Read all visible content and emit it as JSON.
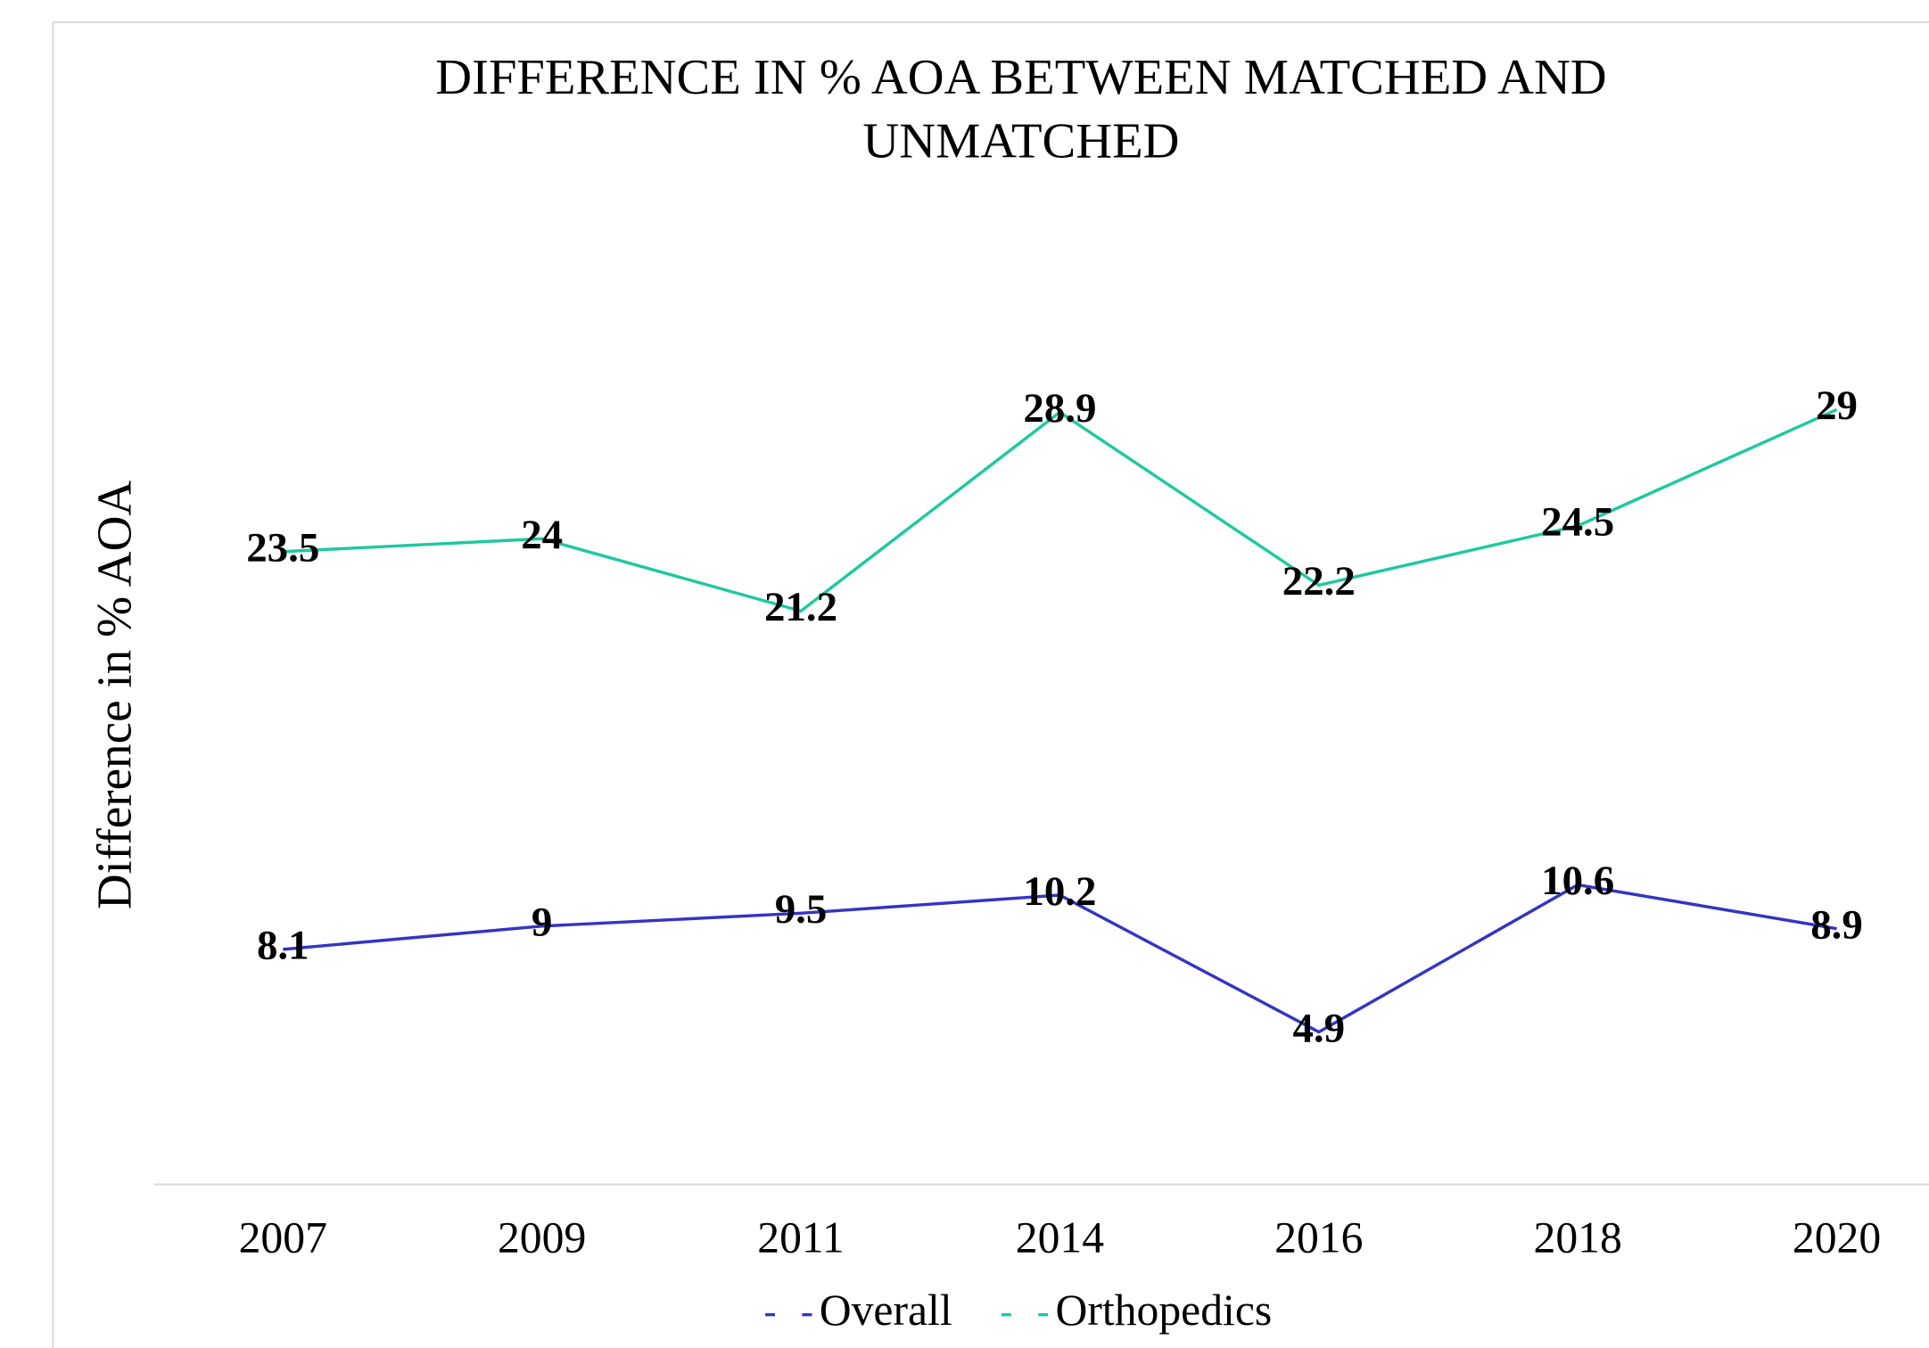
{
  "chart_data": {
    "type": "line",
    "title": "DIFFERENCE IN % AOA BETWEEN MATCHED AND UNMATCHED",
    "y_axis_label": "Difference in % AOA",
    "categories": [
      "2007",
      "2009",
      "2011",
      "2014",
      "2016",
      "2018",
      "2020"
    ],
    "series": [
      {
        "name": "Overall",
        "color": "#3434c4",
        "values": [
          8.1,
          9,
          9.5,
          10.2,
          4.9,
          10.6,
          8.9
        ]
      },
      {
        "name": "Orthopedics",
        "color": "#1ec99e",
        "values": [
          23.5,
          24,
          21.2,
          28.9,
          22.2,
          24.5,
          29
        ]
      }
    ],
    "ylim": [
      -1,
      35
    ],
    "legend": "bottom"
  }
}
